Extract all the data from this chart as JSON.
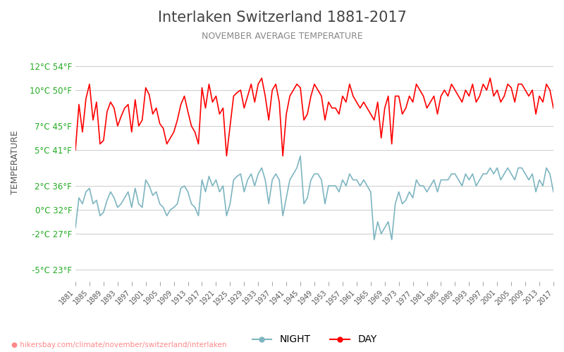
{
  "title": "Interlaken Switzerland 1881-2017",
  "subtitle": "NOVEMBER AVERAGE TEMPERATURE",
  "ylabel": "TEMPERATURE",
  "xlabel_url": "hikersbay.com/climate/november/switzerland/interlaken",
  "legend_night": "NIGHT",
  "legend_day": "DAY",
  "color_day": "#ff0000",
  "color_night": "#7eb5c1",
  "color_grid": "#cccccc",
  "color_title": "#444444",
  "color_subtitle": "#888888",
  "color_yticks_left": "#22aa22",
  "color_ylabel": "#555555",
  "background": "#ffffff",
  "ylim": [
    -6,
    14
  ],
  "yticks_c": [
    -5,
    -2,
    0,
    2,
    5,
    7,
    10,
    12
  ],
  "yticks_f": [
    23,
    27,
    32,
    36,
    41,
    45,
    50,
    54
  ],
  "years": [
    1881,
    1882,
    1883,
    1884,
    1885,
    1886,
    1887,
    1888,
    1889,
    1890,
    1891,
    1892,
    1893,
    1894,
    1895,
    1896,
    1897,
    1898,
    1899,
    1900,
    1901,
    1902,
    1903,
    1904,
    1905,
    1906,
    1907,
    1908,
    1909,
    1910,
    1911,
    1912,
    1913,
    1914,
    1915,
    1916,
    1917,
    1918,
    1919,
    1920,
    1921,
    1922,
    1923,
    1924,
    1925,
    1926,
    1927,
    1928,
    1929,
    1930,
    1931,
    1932,
    1933,
    1934,
    1935,
    1936,
    1937,
    1938,
    1939,
    1940,
    1941,
    1942,
    1943,
    1944,
    1945,
    1946,
    1947,
    1948,
    1949,
    1950,
    1951,
    1952,
    1953,
    1954,
    1955,
    1956,
    1957,
    1958,
    1959,
    1960,
    1961,
    1962,
    1963,
    1964,
    1965,
    1966,
    1967,
    1968,
    1969,
    1970,
    1971,
    1972,
    1973,
    1974,
    1975,
    1976,
    1977,
    1978,
    1979,
    1980,
    1981,
    1982,
    1983,
    1984,
    1985,
    1986,
    1987,
    1988,
    1989,
    1990,
    1991,
    1992,
    1993,
    1994,
    1995,
    1996,
    1997,
    1998,
    1999,
    2000,
    2001,
    2002,
    2003,
    2004,
    2005,
    2006,
    2007,
    2008,
    2009,
    2010,
    2011,
    2012,
    2013,
    2014,
    2015,
    2016,
    2017
  ],
  "day_temps": [
    5.0,
    8.8,
    6.5,
    9.3,
    10.5,
    7.5,
    9.0,
    5.5,
    5.8,
    8.2,
    9.0,
    8.5,
    7.0,
    7.8,
    8.5,
    8.8,
    6.5,
    9.2,
    7.0,
    7.5,
    10.2,
    9.6,
    8.0,
    8.5,
    7.2,
    6.8,
    5.5,
    6.0,
    6.5,
    7.5,
    8.8,
    9.5,
    8.2,
    7.0,
    6.5,
    5.5,
    10.2,
    8.5,
    10.5,
    9.0,
    9.5,
    8.0,
    8.5,
    4.5,
    7.0,
    9.5,
    9.8,
    10.0,
    8.5,
    9.5,
    10.5,
    9.0,
    10.5,
    11.0,
    9.5,
    7.5,
    10.0,
    10.5,
    9.0,
    4.5,
    8.0,
    9.5,
    10.0,
    10.5,
    10.2,
    7.5,
    8.0,
    9.5,
    10.5,
    10.0,
    9.5,
    7.5,
    9.0,
    8.5,
    8.5,
    8.0,
    9.5,
    9.0,
    10.5,
    9.5,
    9.0,
    8.5,
    9.0,
    8.5,
    8.0,
    7.5,
    9.0,
    6.0,
    8.5,
    9.5,
    5.5,
    9.5,
    9.5,
    8.0,
    8.5,
    9.5,
    9.0,
    10.5,
    10.0,
    9.5,
    8.5,
    9.0,
    9.5,
    8.0,
    9.5,
    10.0,
    9.5,
    10.5,
    10.0,
    9.5,
    9.0,
    10.0,
    9.5,
    10.5,
    9.0,
    9.5,
    10.5,
    10.0,
    11.0,
    9.5,
    10.0,
    9.0,
    9.5,
    10.5,
    10.2,
    9.0,
    10.5,
    10.5,
    10.0,
    9.5,
    10.0,
    8.0,
    9.5,
    9.0,
    10.5,
    10.0,
    8.5
  ],
  "night_temps": [
    -1.5,
    1.0,
    0.5,
    1.5,
    1.8,
    0.5,
    0.8,
    -0.5,
    -0.2,
    0.8,
    1.5,
    1.0,
    0.2,
    0.5,
    1.0,
    1.5,
    0.2,
    1.8,
    0.5,
    0.2,
    2.5,
    2.0,
    1.2,
    1.5,
    0.5,
    0.2,
    -0.5,
    0.0,
    0.2,
    0.5,
    1.8,
    2.0,
    1.5,
    0.5,
    0.2,
    -0.5,
    2.5,
    1.5,
    2.8,
    2.0,
    2.5,
    1.5,
    2.0,
    -0.5,
    0.5,
    2.5,
    2.8,
    3.0,
    1.5,
    2.5,
    3.0,
    2.0,
    3.0,
    3.5,
    2.5,
    0.5,
    2.5,
    3.0,
    2.5,
    -0.5,
    1.0,
    2.5,
    3.0,
    3.5,
    4.5,
    0.5,
    1.0,
    2.5,
    3.0,
    3.0,
    2.5,
    0.5,
    2.0,
    2.0,
    2.0,
    1.5,
    2.5,
    2.0,
    3.0,
    2.5,
    2.5,
    2.0,
    2.5,
    2.0,
    1.5,
    -2.5,
    -1.0,
    -2.0,
    -1.5,
    -1.0,
    -2.5,
    0.5,
    1.5,
    0.5,
    0.8,
    1.5,
    1.0,
    2.5,
    2.0,
    2.0,
    1.5,
    2.0,
    2.5,
    1.5,
    2.5,
    2.5,
    2.5,
    3.0,
    3.0,
    2.5,
    2.0,
    3.0,
    2.5,
    3.0,
    2.0,
    2.5,
    3.0,
    3.0,
    3.5,
    3.0,
    3.5,
    2.5,
    3.0,
    3.5,
    3.0,
    2.5,
    3.5,
    3.5,
    3.0,
    2.5,
    3.0,
    1.5,
    2.5,
    2.0,
    3.5,
    3.0,
    1.5
  ]
}
